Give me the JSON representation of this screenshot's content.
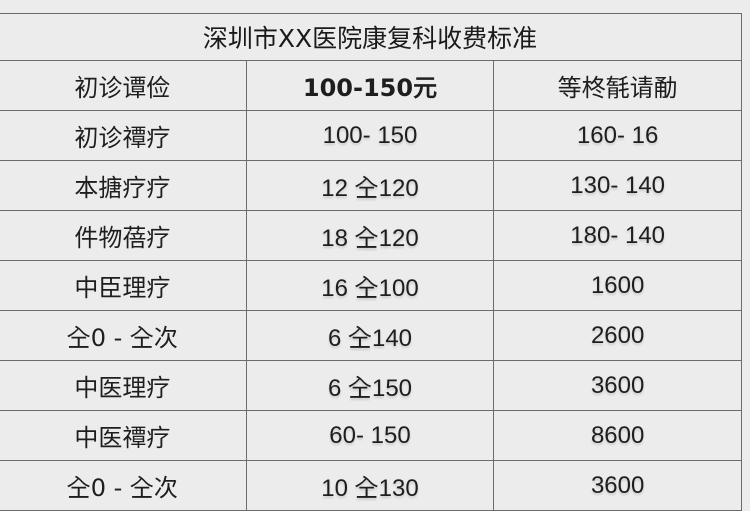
{
  "title": "深圳市XX医院康复科收费标准",
  "header": [
    "初诊谭俭",
    "100-150元",
    "等柊毻请勈"
  ],
  "rows": [
    [
      "初诊禫疗",
      "100- 150",
      "160- 16"
    ],
    [
      "本搪疗疗",
      "12 㒰120",
      "130- 140"
    ],
    [
      "件物蓓疗",
      "18 㒰120",
      "180- 140"
    ],
    [
      "中臣理疗",
      "16 㒰100",
      "1600"
    ],
    [
      "㒰0 - 㒰次",
      "6 㒰140",
      "2600"
    ],
    [
      "中医理疗",
      "6 㒰150",
      "3600"
    ],
    [
      "中医禫疗",
      "60- 150",
      "8600"
    ],
    [
      "㒰0 - 㒰次",
      "10 㒰130",
      "3600"
    ]
  ]
}
